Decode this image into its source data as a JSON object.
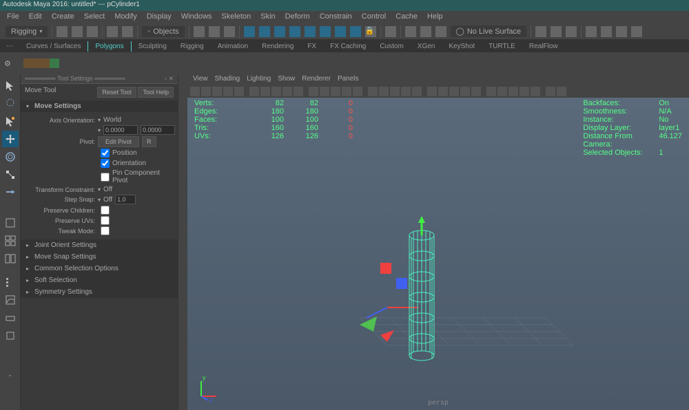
{
  "titlebar": "Autodesk Maya 2016: untitled*  ---  pCylinder1",
  "menus": [
    "File",
    "Edit",
    "Create",
    "Select",
    "Modify",
    "Display",
    "Windows",
    "Skeleton",
    "Skin",
    "Deform",
    "Constrain",
    "Control",
    "Cache",
    "Help"
  ],
  "workspace": "Rigging",
  "objects_label": "Objects",
  "live_surface": "No Live Surface",
  "shelftabs": [
    "Curves / Surfaces",
    "Polygons",
    "Sculpting",
    "Rigging",
    "Animation",
    "Rendering",
    "FX",
    "FX Caching",
    "Custom",
    "XGen",
    "KeyShot",
    "TURTLE",
    "RealFlow"
  ],
  "active_shelf": "Polygons",
  "settings_panel_title": "Tool Settings",
  "tool_name": "Move Tool",
  "reset_btn": "Reset Tool",
  "help_btn": "Tool Help",
  "sections": {
    "move_settings": "Move Settings",
    "axis_label": "Axis Orientation:",
    "axis_value": "World",
    "coord1": "0.0000",
    "coord2": "0.0000",
    "pivot_label": "Pivot:",
    "edit_pivot": "Edit Pivot",
    "position": "Position",
    "orientation": "Orientation",
    "pin_pivot": "Pin Component Pivot",
    "transform_constraint": "Transform Constraint:",
    "tc_value": "Off",
    "step_snap": "Step Snap:",
    "ss_value": "Off",
    "ss_num": "1.0",
    "preserve_children": "Preserve Children:",
    "preserve_uvs": "Preserve UVs:",
    "tweak_mode": "Tweak Mode:",
    "joint_orient": "Joint Orient Settings",
    "move_snap": "Move Snap Settings",
    "common_sel": "Common Selection Options",
    "soft_sel": "Soft Selection",
    "symmetry": "Symmetry Settings"
  },
  "vp_menus": [
    "View",
    "Shading",
    "Lighting",
    "Show",
    "Renderer",
    "Panels"
  ],
  "hud_left": [
    {
      "label": "Verts:",
      "a": "82",
      "b": "82",
      "c": "0"
    },
    {
      "label": "Edges:",
      "a": "180",
      "b": "180",
      "c": "0"
    },
    {
      "label": "Faces:",
      "a": "100",
      "b": "100",
      "c": "0"
    },
    {
      "label": "Tris:",
      "a": "160",
      "b": "160",
      "c": "0"
    },
    {
      "label": "UVs:",
      "a": "126",
      "b": "126",
      "c": "0"
    }
  ],
  "hud_right": [
    {
      "label": "Backfaces:",
      "val": "On"
    },
    {
      "label": "Smoothness:",
      "val": "N/A"
    },
    {
      "label": "Instance:",
      "val": "No"
    },
    {
      "label": "Display Layer:",
      "val": "layer1"
    },
    {
      "label": "Distance From Camera:",
      "val": "46.127"
    },
    {
      "label": "Selected Objects:",
      "val": "1"
    }
  ],
  "persp": "persp",
  "colors": {
    "viewport_bg_top": "#5a6a7a",
    "wireframe": "#4df0c0",
    "axis_x": "#f04040",
    "axis_y": "#40f040",
    "axis_z": "#4060f0"
  }
}
